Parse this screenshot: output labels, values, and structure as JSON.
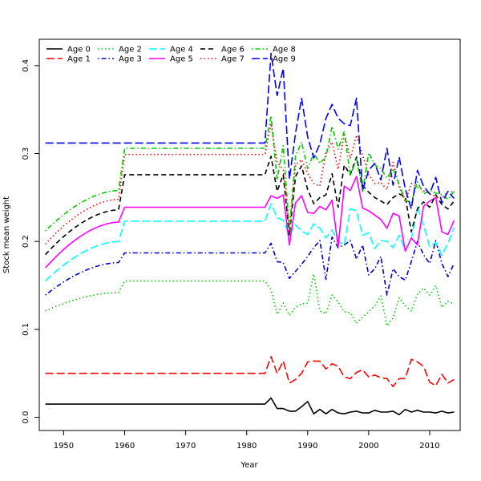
{
  "chart_data": {
    "type": "line",
    "title": "",
    "xlabel": "Year",
    "ylabel": "Stock mean weight",
    "xlim": [
      1946,
      2015
    ],
    "ylim": [
      -0.015,
      0.43
    ],
    "x_ticks": [
      1950,
      1960,
      1970,
      1980,
      1990,
      2000,
      2010
    ],
    "y_ticks": [
      0.0,
      0.1,
      0.2,
      0.3,
      0.4
    ],
    "y_tick_labels": [
      "0.0",
      "0.1",
      "0.2",
      "0.3",
      "0.4"
    ],
    "grid": false,
    "legend_position": "top-left",
    "years": [
      1947,
      1948,
      1949,
      1950,
      1951,
      1952,
      1953,
      1954,
      1955,
      1956,
      1957,
      1958,
      1959,
      1960,
      1961,
      1962,
      1963,
      1964,
      1965,
      1966,
      1967,
      1968,
      1969,
      1970,
      1971,
      1972,
      1973,
      1974,
      1975,
      1976,
      1977,
      1978,
      1979,
      1980,
      1981,
      1982,
      1983,
      1984,
      1985,
      1986,
      1987,
      1988,
      1989,
      1990,
      1991,
      1992,
      1993,
      1994,
      1995,
      1996,
      1997,
      1998,
      1999,
      2000,
      2001,
      2002,
      2003,
      2004,
      2005,
      2006,
      2007,
      2008,
      2009,
      2010,
      2011,
      2012,
      2013,
      2014
    ],
    "series": [
      {
        "name": "Age 0",
        "color": "#000000",
        "dash": "solid",
        "params": {
          "v1947": 0.015,
          "v1959": 0.015,
          "flat": 0.015,
          "tail": [
            0.015,
            0.022,
            0.01,
            0.01,
            0.007,
            0.007,
            0.012,
            0.018,
            0.004,
            0.009,
            0.004,
            0.009,
            0.005,
            0.004,
            0.006,
            0.007,
            0.005,
            0.005,
            0.008,
            0.006,
            0.006,
            0.007,
            0.003,
            0.009,
            0.006,
            0.008,
            0.006,
            0.006,
            0.005,
            0.007,
            0.005,
            0.006,
            0.006
          ]
        }
      },
      {
        "name": "Age 1",
        "color": "#ff0000",
        "dash": "longdash",
        "params": {
          "v1947": 0.05,
          "v1959": 0.05,
          "flat": 0.05,
          "tail": [
            0.05,
            0.069,
            0.05,
            0.064,
            0.039,
            0.043,
            0.05,
            0.063,
            0.064,
            0.064,
            0.055,
            0.061,
            0.058,
            0.046,
            0.044,
            0.051,
            0.054,
            0.046,
            0.048,
            0.045,
            0.044,
            0.035,
            0.044,
            0.044,
            0.066,
            0.063,
            0.058,
            0.04,
            0.036,
            0.049,
            0.039,
            0.043,
            0.043
          ]
        }
      },
      {
        "name": "Age 2",
        "color": "#00cd00",
        "dash": "dotted",
        "params": {
          "v1947": 0.121,
          "v1959": 0.142,
          "flat": 0.155,
          "tail": [
            0.155,
            0.145,
            0.117,
            0.13,
            0.116,
            0.125,
            0.129,
            0.13,
            0.163,
            0.121,
            0.118,
            0.139,
            0.131,
            0.12,
            0.119,
            0.107,
            0.114,
            0.12,
            0.127,
            0.138,
            0.104,
            0.113,
            0.136,
            0.127,
            0.121,
            0.14,
            0.147,
            0.139,
            0.15,
            0.125,
            0.132,
            0.129,
            0.129
          ]
        }
      },
      {
        "name": "Age 3",
        "color": "#0000cd",
        "dash": "dotdash",
        "params": {
          "v1947": 0.139,
          "v1959": 0.176,
          "flat": 0.187,
          "tail": [
            0.187,
            0.198,
            0.177,
            0.176,
            0.158,
            0.166,
            0.174,
            0.183,
            0.193,
            0.201,
            0.157,
            0.205,
            0.193,
            0.196,
            0.201,
            0.18,
            0.196,
            0.162,
            0.169,
            0.183,
            0.139,
            0.169,
            0.16,
            0.156,
            0.177,
            0.2,
            0.185,
            0.175,
            0.201,
            0.175,
            0.16,
            0.175,
            0.175
          ]
        }
      },
      {
        "name": "Age 4",
        "color": "#00ffff",
        "dash": "longdash",
        "params": {
          "v1947": 0.155,
          "v1959": 0.2,
          "flat": 0.223,
          "tail": [
            0.223,
            0.243,
            0.227,
            0.224,
            0.207,
            0.219,
            0.212,
            0.208,
            0.22,
            0.215,
            0.204,
            0.213,
            0.2,
            0.196,
            0.237,
            0.235,
            0.207,
            0.21,
            0.192,
            0.201,
            0.2,
            0.193,
            0.207,
            0.19,
            0.203,
            0.239,
            0.219,
            0.194,
            0.199,
            0.184,
            0.198,
            0.216,
            0.193
          ]
        }
      },
      {
        "name": "Age 5",
        "color": "#ff00ff",
        "dash": "solid",
        "params": {
          "v1947": 0.17,
          "v1959": 0.222,
          "flat": 0.239,
          "tail": [
            0.239,
            0.252,
            0.249,
            0.253,
            0.196,
            0.244,
            0.252,
            0.233,
            0.232,
            0.24,
            0.236,
            0.247,
            0.194,
            0.263,
            0.258,
            0.274,
            0.238,
            0.235,
            0.23,
            0.225,
            0.215,
            0.232,
            0.229,
            0.189,
            0.204,
            0.196,
            0.24,
            0.246,
            0.25,
            0.211,
            0.208,
            0.224,
            0.225
          ]
        }
      },
      {
        "name": "Age 6",
        "color": "#000000",
        "dash": "dashed",
        "params": {
          "v1947": 0.185,
          "v1959": 0.236,
          "flat": 0.276,
          "tail": [
            0.276,
            0.297,
            0.257,
            0.276,
            0.207,
            0.274,
            0.286,
            0.259,
            0.243,
            0.25,
            0.253,
            0.277,
            0.239,
            0.287,
            0.276,
            0.296,
            0.264,
            0.256,
            0.25,
            0.246,
            0.242,
            0.25,
            0.254,
            0.251,
            0.211,
            0.237,
            0.245,
            0.239,
            0.253,
            0.242,
            0.237,
            0.246,
            0.245
          ]
        }
      },
      {
        "name": "Age 7",
        "color": "#ff0000",
        "dash": "dotted",
        "params": {
          "v1947": 0.197,
          "v1959": 0.248,
          "flat": 0.299,
          "tail": [
            0.299,
            0.334,
            0.29,
            0.282,
            0.212,
            0.287,
            0.293,
            0.277,
            0.266,
            0.263,
            0.302,
            0.313,
            0.282,
            0.323,
            0.294,
            0.321,
            0.298,
            0.276,
            0.266,
            0.267,
            0.259,
            0.29,
            0.262,
            0.245,
            0.266,
            0.262,
            0.258,
            0.254,
            0.251,
            0.249,
            0.257,
            0.256,
            0.225
          ]
        }
      },
      {
        "name": "Age 8",
        "color": "#00cd00",
        "dash": "dotdash",
        "params": {
          "v1947": 0.212,
          "v1959": 0.258,
          "flat": 0.306,
          "tail": [
            0.306,
            0.343,
            0.27,
            0.309,
            0.213,
            0.297,
            0.313,
            0.283,
            0.3,
            0.289,
            0.296,
            0.331,
            0.305,
            0.325,
            0.275,
            0.294,
            0.257,
            0.301,
            0.287,
            0.283,
            0.272,
            0.283,
            0.265,
            0.247,
            0.244,
            0.268,
            0.254,
            0.258,
            0.255,
            0.253,
            0.248,
            0.257,
            0.248
          ]
        }
      },
      {
        "name": "Age 9",
        "color": "#0000ff",
        "dash": "longdash",
        "params": {
          "v1947": 0.312,
          "v1959": 0.312,
          "flat": 0.312,
          "tail": [
            0.312,
            0.414,
            0.366,
            0.397,
            0.271,
            0.323,
            0.363,
            0.319,
            0.295,
            0.311,
            0.34,
            0.356,
            0.34,
            0.334,
            0.332,
            0.363,
            0.258,
            0.281,
            0.289,
            0.27,
            0.306,
            0.264,
            0.296,
            0.26,
            0.237,
            0.281,
            0.263,
            0.254,
            0.273,
            0.244,
            0.257,
            0.249,
            0.249
          ]
        }
      }
    ]
  }
}
